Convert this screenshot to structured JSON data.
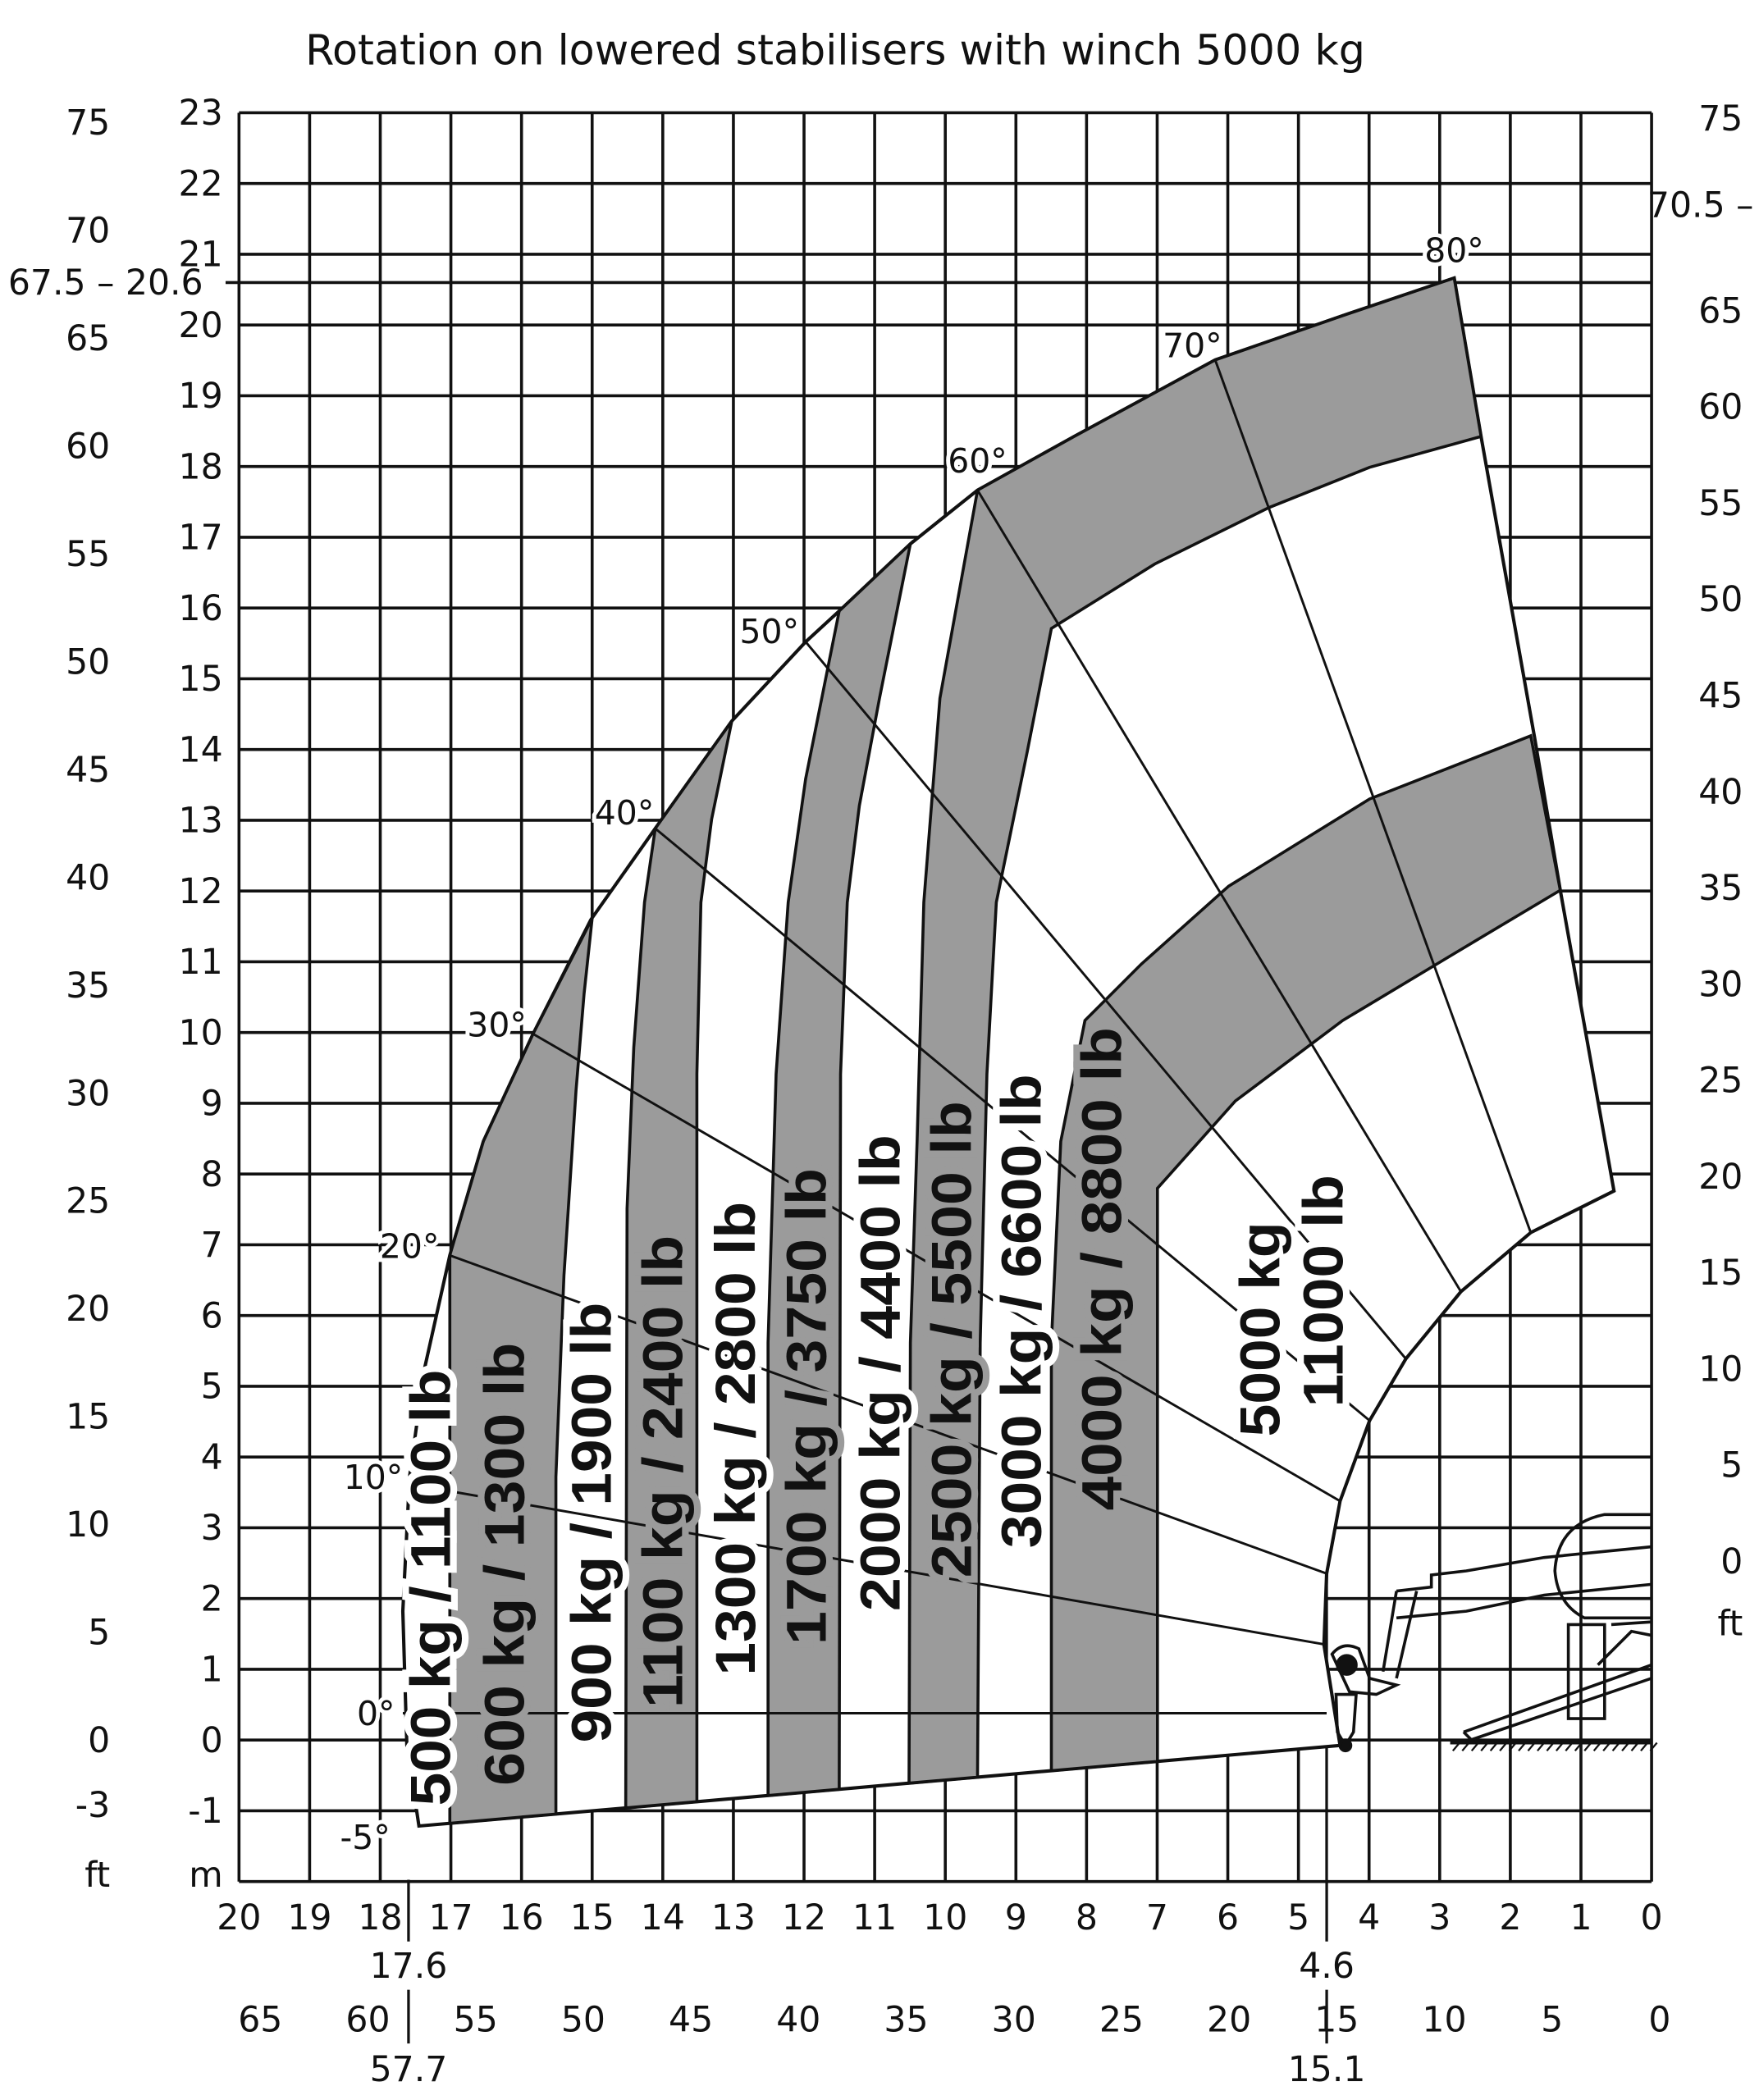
{
  "chart_data": {
    "type": "load-chart",
    "title": "Rotation on lowered stabilisers with winch 5000 kg",
    "x_axis": {
      "unit_label": "m",
      "range": [
        20,
        0
      ],
      "ticks_m": [
        20,
        19,
        18,
        17,
        16,
        15,
        14,
        13,
        12,
        11,
        10,
        9,
        8,
        7,
        6,
        5,
        4,
        3,
        2,
        1,
        0
      ],
      "ticks_ft": [
        65,
        60,
        55,
        50,
        45,
        40,
        35,
        30,
        25,
        20,
        15,
        10,
        5,
        0
      ],
      "markers": [
        {
          "m": "17.6",
          "ft": "57.7"
        },
        {
          "m": "4.6",
          "ft": "15.1"
        }
      ]
    },
    "y_axis_left": {
      "unit_label_m": "m",
      "unit_label_ft": "ft",
      "range": [
        -2,
        23
      ],
      "ticks_m": [
        23,
        22,
        21,
        20,
        19,
        18,
        17,
        16,
        15,
        14,
        13,
        12,
        11,
        10,
        9,
        8,
        7,
        6,
        5,
        4,
        3,
        2,
        1,
        0,
        -1
      ],
      "ticks_ft": [
        75,
        70,
        65,
        60,
        55,
        50,
        45,
        40,
        35,
        30,
        25,
        20,
        15,
        10,
        5,
        0,
        -3
      ],
      "max_height_marker": {
        "ft": "67.5",
        "m": "20.6",
        "dash": "–"
      }
    },
    "y_axis_right": {
      "unit_label_ft": "ft",
      "ticks_ft": [
        75,
        65,
        60,
        55,
        50,
        45,
        40,
        35,
        30,
        25,
        20,
        15,
        10,
        5,
        0
      ],
      "marker": {
        "ft": "70.5",
        "dash": "–"
      }
    },
    "boom_angles": [
      "-5°",
      "0°",
      "10°",
      "20°",
      "30°",
      "40°",
      "50°",
      "60°",
      "70°",
      "80°"
    ],
    "zones": [
      {
        "label": "500 kg / 1100 lb",
        "kg": 500,
        "lb": 1100,
        "shade": "white"
      },
      {
        "label": "600 kg / 1300 lb",
        "kg": 600,
        "lb": 1300,
        "shade": "gray"
      },
      {
        "label": "900 kg / 1900 lb",
        "kg": 900,
        "lb": 1900,
        "shade": "white"
      },
      {
        "label": "1100 kg / 2400 lb",
        "kg": 1100,
        "lb": 2400,
        "shade": "gray"
      },
      {
        "label": "1300 kg / 2800 lb",
        "kg": 1300,
        "lb": 2800,
        "shade": "white"
      },
      {
        "label": "1700 kg / 3750 lb",
        "kg": 1700,
        "lb": 3750,
        "shade": "gray"
      },
      {
        "label": "2000 kg / 4400 lb",
        "kg": 2000,
        "lb": 4400,
        "shade": "white"
      },
      {
        "label": "2500 kg / 5500 lb",
        "kg": 2500,
        "lb": 5500,
        "shade": "gray"
      },
      {
        "label": "3000 kg / 6600 lb",
        "kg": 3000,
        "lb": 6600,
        "shade": "white"
      },
      {
        "label": "4000 kg / 8800 lb",
        "kg": 4000,
        "lb": 8800,
        "shade": "gray"
      },
      {
        "label": "5000 kg",
        "label2": "11000 lb",
        "kg": 5000,
        "lb": 11000,
        "shade": "white"
      }
    ],
    "grid": true,
    "colors": {
      "gray_zone": "#9b9b9b",
      "white_zone": "#ffffff",
      "line": "#111111"
    }
  }
}
